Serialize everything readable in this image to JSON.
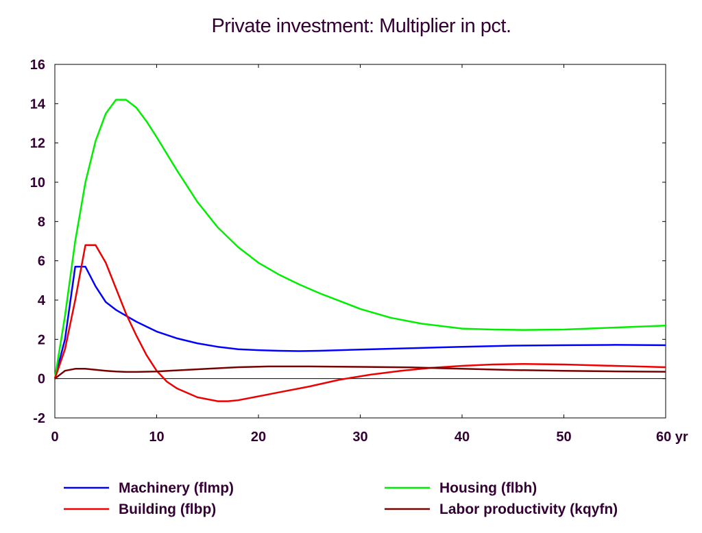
{
  "chart_data": {
    "type": "line",
    "title": "Private investment: Multiplier in pct.",
    "xlabel": "",
    "ylabel": "",
    "xlim": [
      0,
      60
    ],
    "ylim": [
      -2,
      16
    ],
    "x_ticks": [
      0,
      10,
      20,
      30,
      40,
      50,
      60
    ],
    "x_tick_labels": [
      "0",
      "10",
      "20",
      "30",
      "40",
      "50",
      "60 yr"
    ],
    "y_ticks": [
      -2,
      0,
      2,
      4,
      6,
      8,
      10,
      12,
      14,
      16
    ],
    "y_tick_labels": [
      "-2",
      "0",
      "2",
      "4",
      "6",
      "8",
      "10",
      "12",
      "14",
      "16"
    ],
    "grid": false,
    "legend_position": "bottom",
    "series": [
      {
        "name": "Machinery (flmp)",
        "color": "#0000ff",
        "x": [
          0,
          1,
          2,
          3,
          4,
          5,
          6,
          7,
          8,
          9,
          10,
          12,
          14,
          16,
          18,
          20,
          22,
          24,
          26,
          28,
          30,
          35,
          40,
          45,
          50,
          55,
          60
        ],
        "y": [
          0,
          2.0,
          5.7,
          5.7,
          4.7,
          3.9,
          3.5,
          3.2,
          2.9,
          2.65,
          2.4,
          2.05,
          1.8,
          1.62,
          1.5,
          1.45,
          1.42,
          1.4,
          1.42,
          1.45,
          1.48,
          1.55,
          1.62,
          1.68,
          1.7,
          1.72,
          1.7
        ]
      },
      {
        "name": "Housing (flbh)",
        "color": "#00ee00",
        "x": [
          0,
          1,
          2,
          3,
          4,
          5,
          6,
          7,
          8,
          9,
          10,
          12,
          14,
          16,
          18,
          20,
          22,
          24,
          26,
          28,
          30,
          33,
          36,
          40,
          43,
          46,
          50,
          55,
          60
        ],
        "y": [
          0,
          3.2,
          7.0,
          10.0,
          12.1,
          13.5,
          14.2,
          14.2,
          13.8,
          13.1,
          12.3,
          10.6,
          9.0,
          7.7,
          6.7,
          5.9,
          5.3,
          4.8,
          4.35,
          3.95,
          3.55,
          3.1,
          2.8,
          2.55,
          2.5,
          2.48,
          2.5,
          2.6,
          2.7
        ]
      },
      {
        "name": "Building (flbp)",
        "color": "#ee0000",
        "x": [
          0,
          1,
          2,
          3,
          4,
          5,
          6,
          7,
          8,
          9,
          10,
          11,
          12,
          14,
          16,
          17,
          18,
          20,
          22,
          25,
          28,
          31,
          34,
          37,
          40,
          43,
          46,
          50,
          55,
          60
        ],
        "y": [
          0,
          1.5,
          4.0,
          6.8,
          6.8,
          5.9,
          4.6,
          3.3,
          2.2,
          1.2,
          0.4,
          -0.15,
          -0.5,
          -0.95,
          -1.15,
          -1.15,
          -1.1,
          -0.9,
          -0.7,
          -0.4,
          -0.05,
          0.2,
          0.4,
          0.55,
          0.65,
          0.72,
          0.75,
          0.72,
          0.65,
          0.58
        ]
      },
      {
        "name": "Labor productivity (kqyfn)",
        "color": "#770000",
        "x": [
          0,
          1,
          2,
          3,
          4,
          5,
          6,
          7,
          8,
          10,
          12,
          15,
          18,
          21,
          25,
          30,
          35,
          40,
          45,
          50,
          55,
          60
        ],
        "y": [
          0,
          0.4,
          0.5,
          0.5,
          0.45,
          0.4,
          0.36,
          0.34,
          0.34,
          0.36,
          0.42,
          0.5,
          0.58,
          0.62,
          0.62,
          0.6,
          0.57,
          0.5,
          0.44,
          0.4,
          0.37,
          0.35
        ]
      }
    ]
  }
}
